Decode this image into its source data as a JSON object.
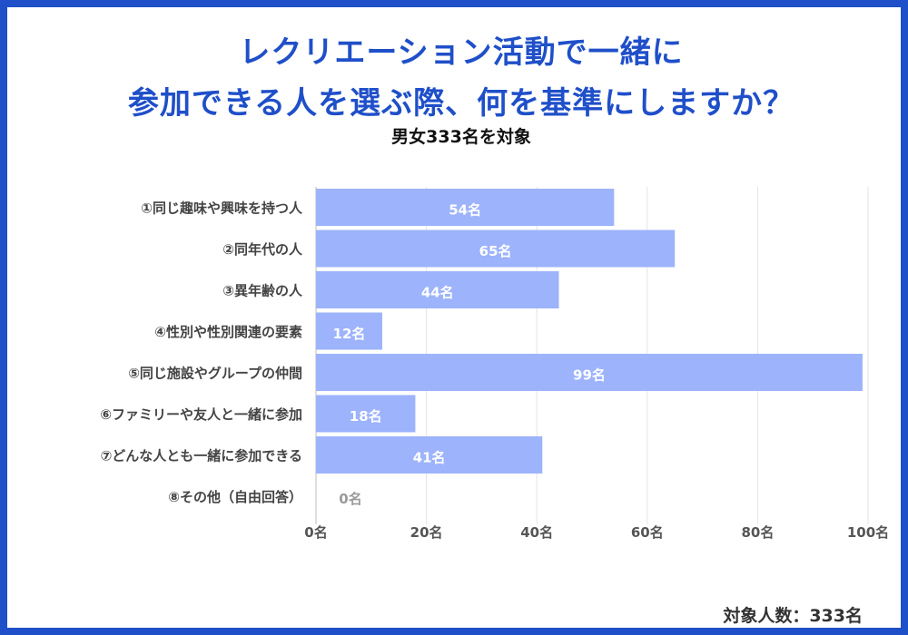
{
  "header": {
    "title_line1": "レクリエーション活動で一緒に",
    "title_line2": "参加できる人を選ぶ際、何を基準にしますか？",
    "subtitle": "男女333名を対象"
  },
  "footer": {
    "respondents": "対象人数：333名"
  },
  "colors": {
    "accent": "#1f4fc9",
    "bar": "#9db3fb",
    "bar_label": "#ffffff",
    "zero_label": "#9a9a9a",
    "grid": "#e3e3e3"
  },
  "chart_data": {
    "type": "bar",
    "orientation": "horizontal",
    "title": "レクリエーション活動で一緒に参加できる人を選ぶ際、何を基準にしますか？",
    "unit": "名",
    "categories": [
      "①同じ趣味や興味を持つ人",
      "②同年代の人",
      "③異年齢の人",
      "④性別や性別関連の要素",
      "⑤同じ施設やグループの仲間",
      "⑥ファミリーや友人と一緒に参加",
      "⑦どんな人とも一緒に参加できる",
      "⑧その他（自由回答）"
    ],
    "values": [
      54,
      65,
      44,
      12,
      99,
      18,
      41,
      0
    ],
    "value_labels": [
      "54名",
      "65名",
      "44名",
      "12名",
      "99名",
      "18名",
      "41名",
      "0名"
    ],
    "xlim": [
      0,
      100
    ],
    "xticks": [
      0,
      20,
      40,
      60,
      80,
      100
    ],
    "xtick_labels": [
      "0名",
      "20名",
      "40名",
      "60名",
      "80名",
      "100名"
    ],
    "grid": true,
    "xlabel": "",
    "ylabel": ""
  }
}
